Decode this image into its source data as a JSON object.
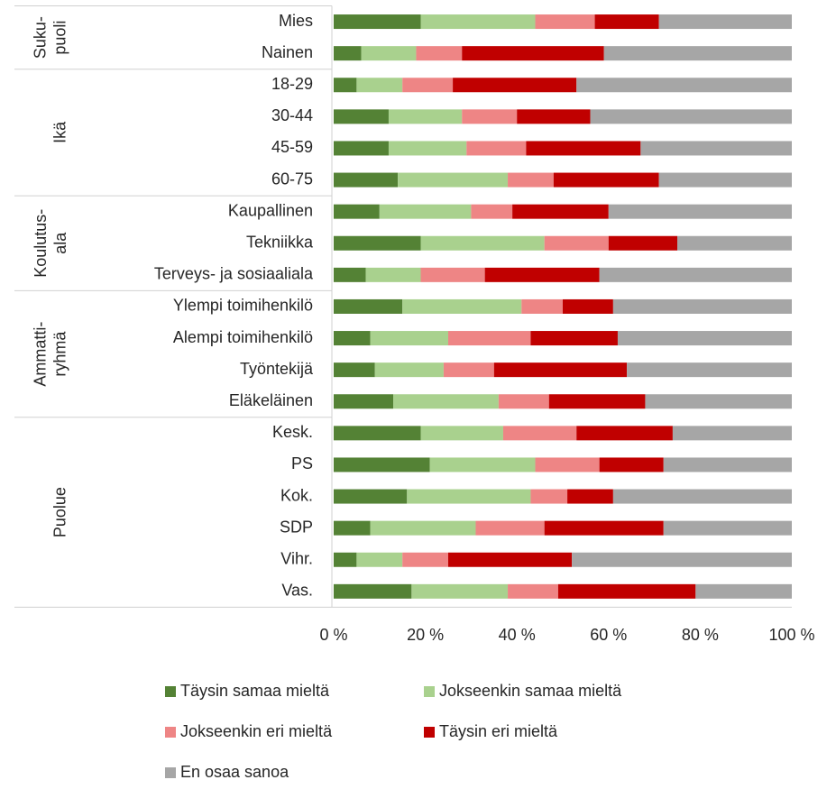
{
  "chart_data": {
    "type": "stacked-bar-horizontal",
    "groups": [
      {
        "label": [
          "Suku-",
          "puoli"
        ],
        "categories": [
          "Mies",
          "Nainen"
        ]
      },
      {
        "label": [
          "Ikä"
        ],
        "categories": [
          "18-29",
          "30-44",
          "45-59",
          "60-75"
        ]
      },
      {
        "label": [
          "Koulutus-",
          "ala"
        ],
        "categories": [
          "Kaupallinen",
          "Tekniikka",
          "Terveys- ja sosiaaliala"
        ]
      },
      {
        "label": [
          "Ammatti-",
          "ryhmä"
        ],
        "categories": [
          "Ylempi toimihenkilö",
          "Alempi toimihenkilö",
          "Työntekijä",
          "Eläkeläinen"
        ]
      },
      {
        "label": [
          "Puolue"
        ],
        "categories": [
          "Kesk.",
          "PS",
          "Kok.",
          "SDP",
          "Vihr.",
          "Vas."
        ]
      }
    ],
    "series": [
      {
        "name": "Täysin samaa mieltä",
        "color": "#548235",
        "values": [
          19,
          6,
          5,
          12,
          12,
          14,
          10,
          19,
          7,
          15,
          8,
          9,
          13,
          19,
          21,
          16,
          8,
          5,
          17
        ]
      },
      {
        "name": "Jokseenkin samaa mieltä",
        "color": "#a9d18e",
        "values": [
          25,
          12,
          10,
          16,
          17,
          24,
          20,
          27,
          12,
          26,
          17,
          15,
          23,
          18,
          23,
          27,
          23,
          10,
          21
        ]
      },
      {
        "name": "Jokseenkin eri mieltä",
        "color": "#ee8585",
        "values": [
          13,
          10,
          11,
          12,
          13,
          10,
          9,
          14,
          14,
          9,
          18,
          11,
          11,
          16,
          14,
          8,
          15,
          10,
          11
        ]
      },
      {
        "name": "Täysin eri mieltä",
        "color": "#c00000",
        "values": [
          14,
          31,
          27,
          16,
          25,
          23,
          21,
          15,
          25,
          11,
          19,
          29,
          21,
          21,
          14,
          10,
          26,
          27,
          30
        ]
      },
      {
        "name": "En osaa sanoa",
        "color": "#a6a6a6",
        "values": [
          29,
          41,
          47,
          44,
          33,
          29,
          40,
          25,
          42,
          39,
          38,
          36,
          32,
          26,
          28,
          39,
          28,
          48,
          21
        ]
      }
    ],
    "xlim": [
      0,
      100
    ],
    "xticks": [
      {
        "value": 0,
        "label": "0 %"
      },
      {
        "value": 20,
        "label": "20 %"
      },
      {
        "value": 40,
        "label": "40 %"
      },
      {
        "value": 60,
        "label": "60 %"
      },
      {
        "value": 80,
        "label": "80 %"
      },
      {
        "value": 100,
        "label": "100 %"
      }
    ]
  }
}
